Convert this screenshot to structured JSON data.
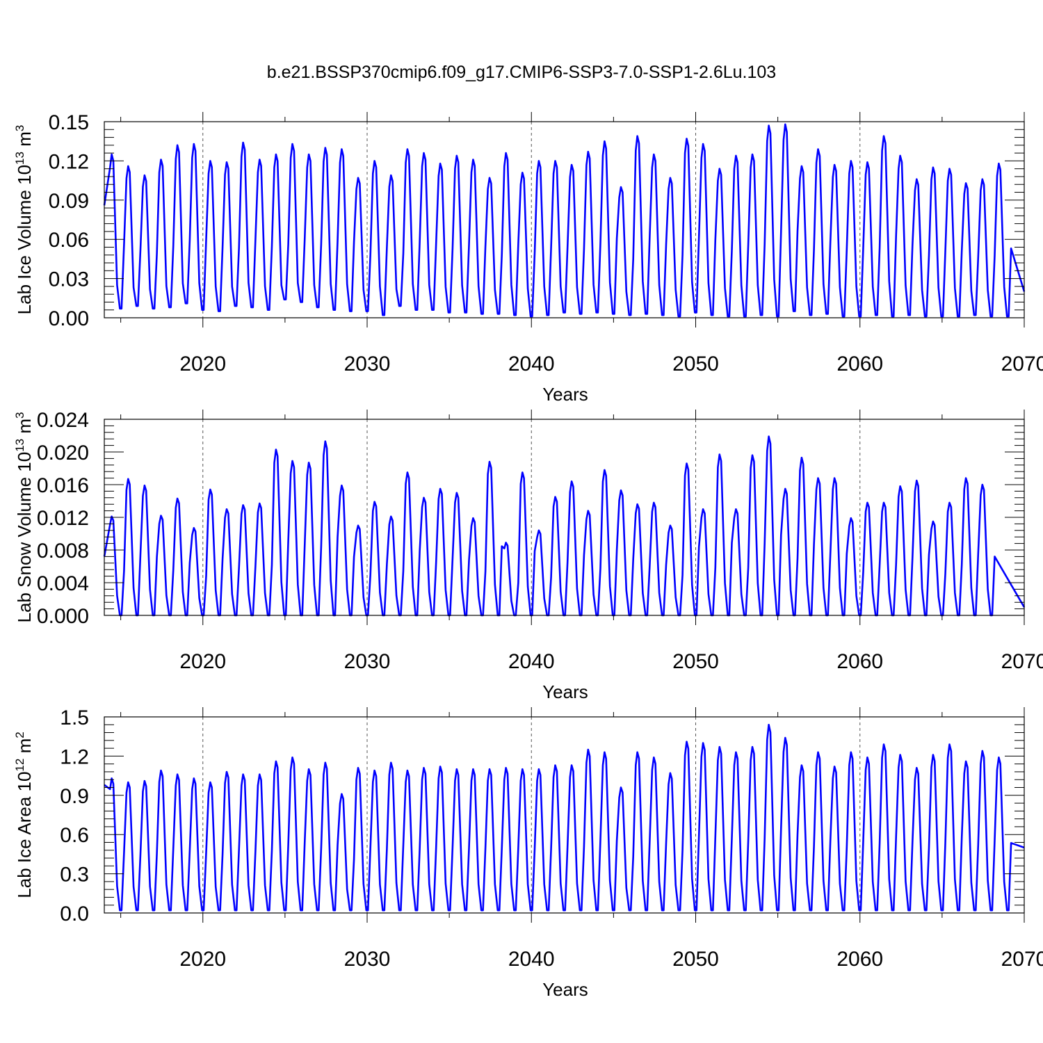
{
  "title": "b.e21.BSSP370cmip6.f09_g17.CMIP6-SSP3-7.0-SSP1-2.6Lu.103",
  "line_color": "#0000ff",
  "chart_data": [
    {
      "type": "line",
      "ylabel": "Lab Ice Volume 10",
      "ylabel_unit_power": "13",
      "ylabel_unit": "m",
      "ylabel_unit_exp": "3",
      "xlabel": "Years",
      "xlim": [
        2014.0,
        2070.0
      ],
      "ylim": [
        0.0,
        0.15
      ],
      "yticks": [
        "0.00",
        "0.03",
        "0.06",
        "0.09",
        "0.12",
        "0.15"
      ],
      "xticks": [
        "2020",
        "2030",
        "2040",
        "2050",
        "2060",
        "2070"
      ],
      "baseline": 0.001,
      "start_value": 0.086,
      "end_value": 0.02,
      "min_values": [
        0.007,
        0.009,
        0.007,
        0.008,
        0.011,
        0.006,
        0.005,
        0.009,
        0.008,
        0.006,
        0.014,
        0.012,
        0.008,
        0.006,
        0.005,
        0.005,
        0.002,
        0.009,
        0.006,
        0.006,
        0.004,
        0.004,
        0.003,
        0.003,
        0.002,
        0.001,
        0.002,
        0.004,
        0.003,
        0.004,
        0.003,
        0.002,
        0.003,
        0.002,
        0.001,
        0.004,
        0.002,
        0.001,
        0.001,
        0.002,
        0.001,
        0.005,
        0.002,
        0.003,
        0.001,
        0.001,
        0.002,
        0.001,
        0.002,
        0.001,
        0.001,
        0.001,
        0.002,
        0.001,
        0.001
      ],
      "values": [
        0.125,
        0.116,
        0.109,
        0.121,
        0.132,
        0.133,
        0.12,
        0.119,
        0.134,
        0.121,
        0.125,
        0.133,
        0.125,
        0.13,
        0.129,
        0.107,
        0.12,
        0.109,
        0.129,
        0.126,
        0.118,
        0.124,
        0.121,
        0.107,
        0.126,
        0.111,
        0.12,
        0.12,
        0.117,
        0.127,
        0.135,
        0.1,
        0.139,
        0.125,
        0.107,
        0.137,
        0.133,
        0.114,
        0.124,
        0.125,
        0.147,
        0.148,
        0.116,
        0.129,
        0.117,
        0.12,
        0.119,
        0.139,
        0.124,
        0.106,
        0.115,
        0.114,
        0.103,
        0.106,
        0.118
      ]
    },
    {
      "type": "line",
      "ylabel": "Lab Snow Volume 10",
      "ylabel_unit_power": "13",
      "ylabel_unit": "m",
      "ylabel_unit_exp": "3",
      "xlabel": "Years",
      "xlim": [
        2014.0,
        2070.0
      ],
      "ylim": [
        0.0,
        0.024
      ],
      "yticks": [
        "0.000",
        "0.004",
        "0.008",
        "0.012",
        "0.016",
        "0.020",
        "0.024"
      ],
      "xticks": [
        "2020",
        "2030",
        "2040",
        "2050",
        "2060",
        "2070"
      ],
      "baseline": 0.0,
      "start_value": 0.0072,
      "end_value": 0.001,
      "min_values": [],
      "values": [
        0.0121,
        0.0167,
        0.0159,
        0.0122,
        0.0143,
        0.0107,
        0.0154,
        0.013,
        0.0135,
        0.0137,
        0.0203,
        0.0189,
        0.0187,
        0.0213,
        0.0159,
        0.011,
        0.0139,
        0.0121,
        0.0175,
        0.0144,
        0.0155,
        0.015,
        0.0119,
        0.0188,
        0.0089,
        0.0175,
        0.0104,
        0.0145,
        0.0164,
        0.0128,
        0.0178,
        0.0153,
        0.0136,
        0.0138,
        0.011,
        0.0186,
        0.013,
        0.0197,
        0.013,
        0.0196,
        0.0219,
        0.0155,
        0.0193,
        0.0168,
        0.0168,
        0.0119,
        0.0138,
        0.0138,
        0.0158,
        0.0165,
        0.0115,
        0.0138,
        0.0168,
        0.016
      ]
    },
    {
      "type": "line",
      "ylabel": "Lab Ice Area 10",
      "ylabel_unit_power": "12",
      "ylabel_unit": "m",
      "ylabel_unit_exp": "2",
      "xlabel": "Years",
      "xlim": [
        2014.0,
        2070.0
      ],
      "ylim": [
        0.0,
        1.5
      ],
      "yticks": [
        "0.0",
        "0.3",
        "0.6",
        "0.9",
        "1.2",
        "1.5"
      ],
      "xticks": [
        "2020",
        "2030",
        "2040",
        "2050",
        "2060",
        "2070"
      ],
      "baseline": 0.02,
      "start_value": 0.98,
      "end_value": 0.5,
      "min_values": [],
      "values": [
        1.03,
        1.0,
        1.01,
        1.09,
        1.06,
        1.03,
        1.0,
        1.08,
        1.06,
        1.06,
        1.16,
        1.19,
        1.1,
        1.15,
        0.91,
        1.11,
        1.09,
        1.15,
        1.09,
        1.11,
        1.12,
        1.1,
        1.1,
        1.1,
        1.11,
        1.1,
        1.1,
        1.13,
        1.13,
        1.25,
        1.23,
        0.96,
        1.23,
        1.19,
        1.07,
        1.31,
        1.3,
        1.27,
        1.23,
        1.27,
        1.44,
        1.34,
        1.13,
        1.23,
        1.12,
        1.23,
        1.19,
        1.29,
        1.21,
        1.11,
        1.21,
        1.29,
        1.16,
        1.24,
        1.19
      ]
    }
  ]
}
